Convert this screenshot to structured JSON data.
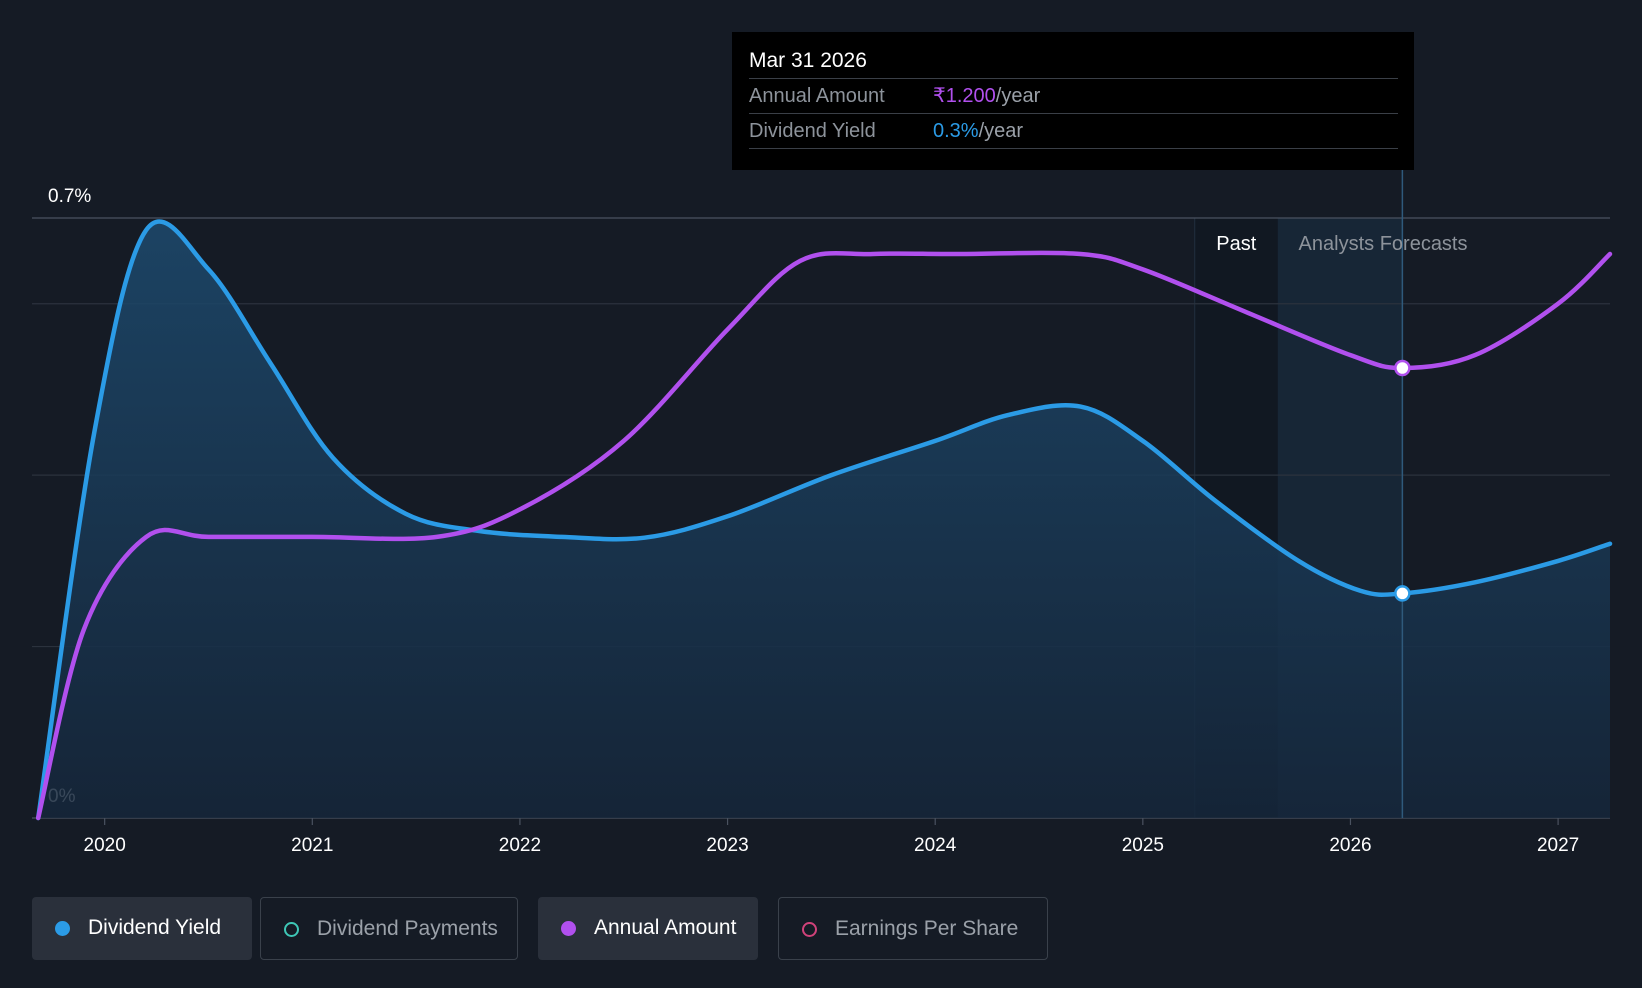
{
  "chart_data": {
    "type": "area",
    "y_axis": {
      "min_label": "0%",
      "max_label": "0.7%",
      "ylim": [
        0,
        0.7
      ]
    },
    "x_axis": {
      "ticks": [
        "2020",
        "2021",
        "2022",
        "2023",
        "2024",
        "2025",
        "2026",
        "2027"
      ],
      "xlim": [
        2019.65,
        2027.25
      ]
    },
    "grid": true,
    "region_labels": {
      "past": "Past",
      "forecast": "Analysts Forecasts"
    },
    "series": [
      {
        "name": "Dividend Yield",
        "color": "#2b9be6",
        "filled": true,
        "points": [
          [
            2019.68,
            0.0
          ],
          [
            2019.95,
            0.45
          ],
          [
            2020.2,
            0.686
          ],
          [
            2020.5,
            0.64
          ],
          [
            2020.8,
            0.53
          ],
          [
            2021.1,
            0.42
          ],
          [
            2021.45,
            0.355
          ],
          [
            2021.8,
            0.335
          ],
          [
            2022.2,
            0.328
          ],
          [
            2022.6,
            0.327
          ],
          [
            2023.0,
            0.352
          ],
          [
            2023.5,
            0.4
          ],
          [
            2024.0,
            0.44
          ],
          [
            2024.35,
            0.47
          ],
          [
            2024.7,
            0.48
          ],
          [
            2025.0,
            0.44
          ],
          [
            2025.35,
            0.37
          ],
          [
            2025.75,
            0.3
          ],
          [
            2026.05,
            0.265
          ],
          [
            2026.25,
            0.262
          ],
          [
            2026.6,
            0.275
          ],
          [
            2027.0,
            0.3
          ],
          [
            2027.25,
            0.32
          ]
        ]
      },
      {
        "name": "Annual Amount",
        "color": "#b150ee",
        "filled": false,
        "points": [
          [
            2019.68,
            0.0
          ],
          [
            2019.9,
            0.22
          ],
          [
            2020.2,
            0.328
          ],
          [
            2020.5,
            0.328
          ],
          [
            2021.0,
            0.328
          ],
          [
            2021.6,
            0.328
          ],
          [
            2022.0,
            0.36
          ],
          [
            2022.5,
            0.44
          ],
          [
            2023.0,
            0.57
          ],
          [
            2023.35,
            0.65
          ],
          [
            2023.7,
            0.658
          ],
          [
            2024.1,
            0.658
          ],
          [
            2024.7,
            0.658
          ],
          [
            2025.0,
            0.64
          ],
          [
            2025.5,
            0.59
          ],
          [
            2026.0,
            0.54
          ],
          [
            2026.25,
            0.525
          ],
          [
            2026.6,
            0.54
          ],
          [
            2027.0,
            0.6
          ],
          [
            2027.25,
            0.658
          ]
        ]
      }
    ],
    "highlight": {
      "x": 2026.25,
      "markers": [
        0.262,
        0.525
      ]
    }
  },
  "tooltip": {
    "date": "Mar 31 2026",
    "rows": [
      {
        "label": "Annual Amount",
        "value": "₹1.200",
        "suffix": "/year"
      },
      {
        "label": "Dividend Yield",
        "value": "0.3%",
        "suffix": "/year"
      }
    ]
  },
  "legend": [
    {
      "label": "Dividend Yield",
      "active": true,
      "color": "#2b9be6"
    },
    {
      "label": "Dividend Payments",
      "active": false,
      "color": "#3ec7b6"
    },
    {
      "label": "Annual Amount",
      "active": true,
      "color": "#b150ee"
    },
    {
      "label": "Earnings Per Share",
      "active": false,
      "color": "#d0427a"
    }
  ]
}
